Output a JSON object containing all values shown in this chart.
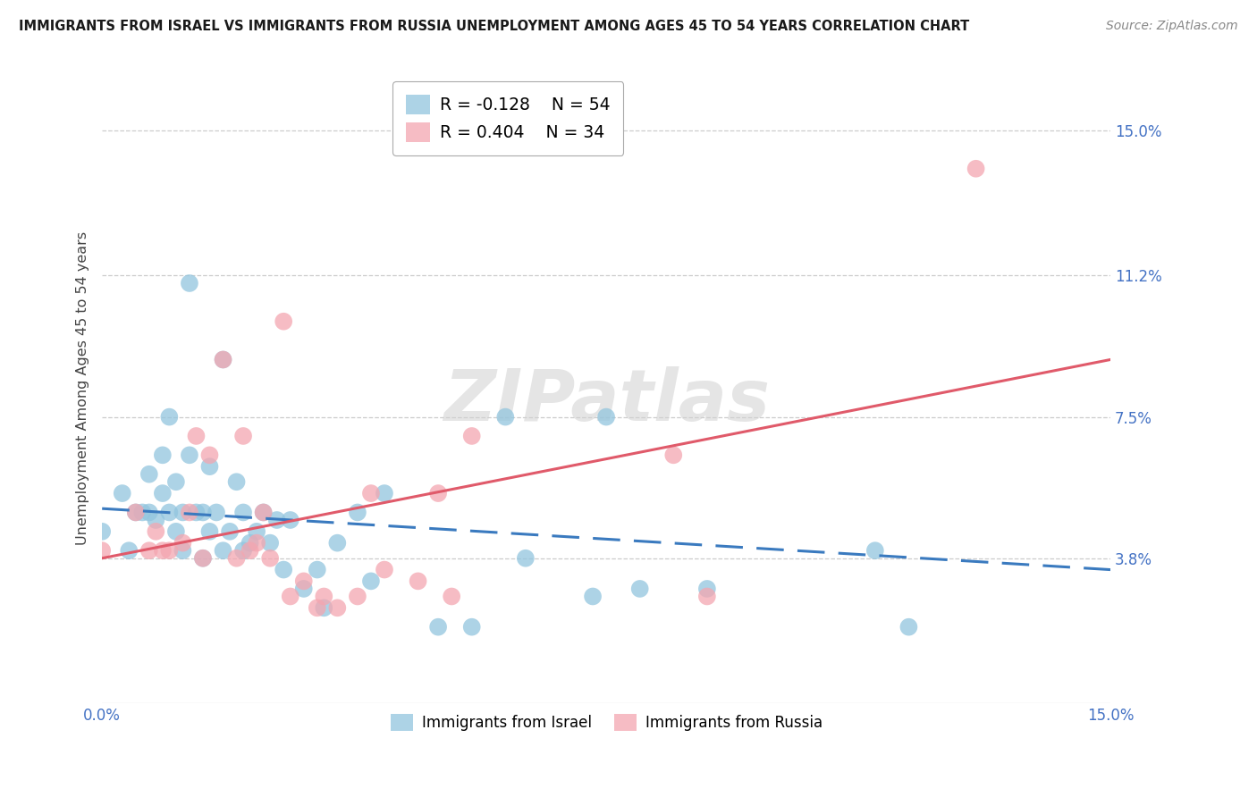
{
  "title": "IMMIGRANTS FROM ISRAEL VS IMMIGRANTS FROM RUSSIA UNEMPLOYMENT AMONG AGES 45 TO 54 YEARS CORRELATION CHART",
  "source": "Source: ZipAtlas.com",
  "ylabel": "Unemployment Among Ages 45 to 54 years",
  "xmin": 0.0,
  "xmax": 0.15,
  "ymin": 0.0,
  "ymax": 0.165,
  "ytick_vals": [
    0.038,
    0.075,
    0.112,
    0.15
  ],
  "ytick_labels": [
    "3.8%",
    "7.5%",
    "11.2%",
    "15.0%"
  ],
  "xtick_vals": [
    0.0,
    0.15
  ],
  "xtick_labels": [
    "0.0%",
    "15.0%"
  ],
  "israel_color": "#92c5de",
  "russia_color": "#f4a6b0",
  "israel_line_color": "#3a7abf",
  "russia_line_color": "#e05a6a",
  "legend_israel_R": "R = -0.128",
  "legend_israel_N": "N = 54",
  "legend_russia_R": "R = 0.404",
  "legend_russia_N": "N = 34",
  "watermark": "ZIPatlas",
  "israel_label": "Immigrants from Israel",
  "russia_label": "Immigrants from Russia",
  "israel_x": [
    0.0,
    0.003,
    0.004,
    0.005,
    0.006,
    0.007,
    0.007,
    0.008,
    0.009,
    0.009,
    0.01,
    0.01,
    0.011,
    0.011,
    0.012,
    0.012,
    0.013,
    0.013,
    0.014,
    0.015,
    0.015,
    0.016,
    0.016,
    0.017,
    0.018,
    0.018,
    0.019,
    0.02,
    0.021,
    0.021,
    0.022,
    0.023,
    0.024,
    0.025,
    0.026,
    0.027,
    0.028,
    0.03,
    0.032,
    0.033,
    0.035,
    0.038,
    0.04,
    0.042,
    0.05,
    0.055,
    0.06,
    0.063,
    0.073,
    0.075,
    0.08,
    0.09,
    0.115,
    0.12
  ],
  "israel_y": [
    0.045,
    0.055,
    0.04,
    0.05,
    0.05,
    0.06,
    0.05,
    0.048,
    0.065,
    0.055,
    0.075,
    0.05,
    0.058,
    0.045,
    0.05,
    0.04,
    0.11,
    0.065,
    0.05,
    0.038,
    0.05,
    0.062,
    0.045,
    0.05,
    0.09,
    0.04,
    0.045,
    0.058,
    0.05,
    0.04,
    0.042,
    0.045,
    0.05,
    0.042,
    0.048,
    0.035,
    0.048,
    0.03,
    0.035,
    0.025,
    0.042,
    0.05,
    0.032,
    0.055,
    0.02,
    0.02,
    0.075,
    0.038,
    0.028,
    0.075,
    0.03,
    0.03,
    0.04,
    0.02
  ],
  "russia_x": [
    0.0,
    0.005,
    0.007,
    0.008,
    0.009,
    0.01,
    0.012,
    0.013,
    0.014,
    0.015,
    0.016,
    0.018,
    0.02,
    0.021,
    0.022,
    0.023,
    0.024,
    0.025,
    0.027,
    0.028,
    0.03,
    0.032,
    0.033,
    0.035,
    0.038,
    0.04,
    0.042,
    0.047,
    0.05,
    0.052,
    0.055,
    0.085,
    0.09,
    0.13
  ],
  "russia_y": [
    0.04,
    0.05,
    0.04,
    0.045,
    0.04,
    0.04,
    0.042,
    0.05,
    0.07,
    0.038,
    0.065,
    0.09,
    0.038,
    0.07,
    0.04,
    0.042,
    0.05,
    0.038,
    0.1,
    0.028,
    0.032,
    0.025,
    0.028,
    0.025,
    0.028,
    0.055,
    0.035,
    0.032,
    0.055,
    0.028,
    0.07,
    0.065,
    0.028,
    0.14
  ],
  "israel_line_x0": 0.0,
  "israel_line_x1": 0.15,
  "israel_line_y0": 0.051,
  "israel_line_y1": 0.035,
  "russia_line_x0": 0.0,
  "russia_line_x1": 0.15,
  "russia_line_y0": 0.038,
  "russia_line_y1": 0.09
}
